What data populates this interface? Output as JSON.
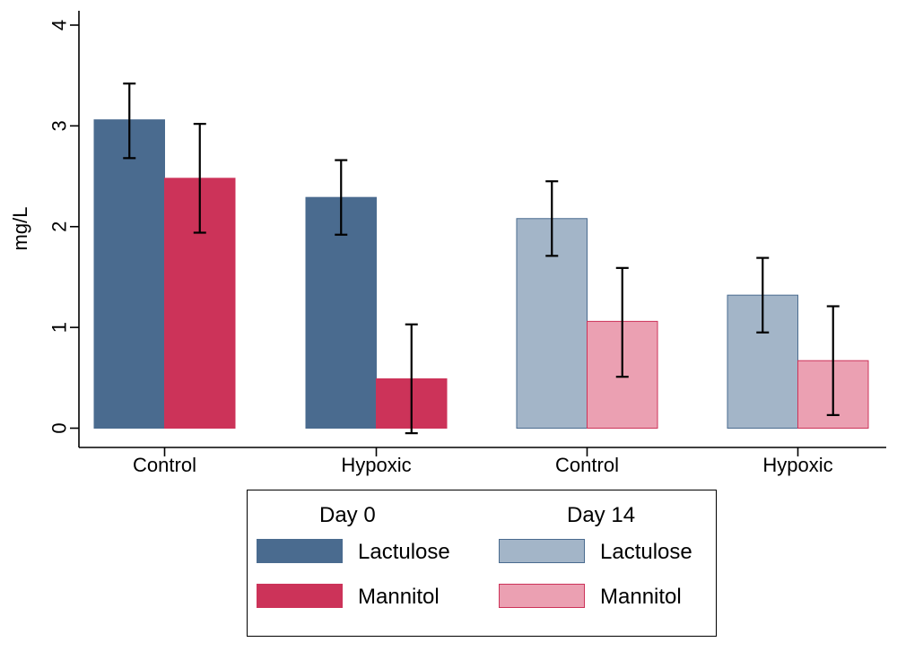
{
  "chart_data": {
    "type": "bar",
    "ylabel": "mg/L",
    "ylim": [
      0,
      4
    ],
    "yticks": [
      "0",
      "1",
      "2",
      "3",
      "4"
    ],
    "categories": [
      "Control",
      "Hypoxic",
      "Control",
      "Hypoxic"
    ],
    "series": [
      {
        "name": "Lactulose",
        "group": "Day 0",
        "color": "#4a6b8f",
        "values": [
          3.06,
          2.29,
          null,
          null
        ],
        "err_low": [
          2.68,
          1.92,
          null,
          null
        ],
        "err_high": [
          3.42,
          2.66,
          null,
          null
        ]
      },
      {
        "name": "Mannitol",
        "group": "Day 0",
        "color": "#cc3359",
        "values": [
          2.48,
          0.49,
          null,
          null
        ],
        "err_low": [
          1.94,
          -0.05,
          null,
          null
        ],
        "err_high": [
          3.02,
          1.03,
          null,
          null
        ]
      },
      {
        "name": "Lactulose",
        "group": "Day 14",
        "color": "#a3b5c8",
        "values": [
          null,
          null,
          2.08,
          1.32
        ],
        "err_low": [
          null,
          null,
          1.71,
          0.95
        ],
        "err_high": [
          null,
          null,
          2.45,
          1.69
        ]
      },
      {
        "name": "Mannitol",
        "group": "Day 14",
        "color": "#eba0b2",
        "values": [
          null,
          null,
          1.06,
          0.67
        ],
        "err_low": [
          null,
          null,
          0.51,
          0.13
        ],
        "err_high": [
          null,
          null,
          1.59,
          1.21
        ]
      }
    ],
    "legend": {
      "columns": [
        {
          "heading": "Day 0",
          "entries": [
            {
              "label": "Lactulose",
              "color": "#4a6b8f"
            },
            {
              "label": "Mannitol",
              "color": "#cc3359"
            }
          ]
        },
        {
          "heading": "Day 14",
          "entries": [
            {
              "label": "Lactulose",
              "color": "#a3b5c8"
            },
            {
              "label": "Mannitol",
              "color": "#eba0b2"
            }
          ]
        }
      ],
      "placement": "bottom"
    },
    "grid": false
  }
}
